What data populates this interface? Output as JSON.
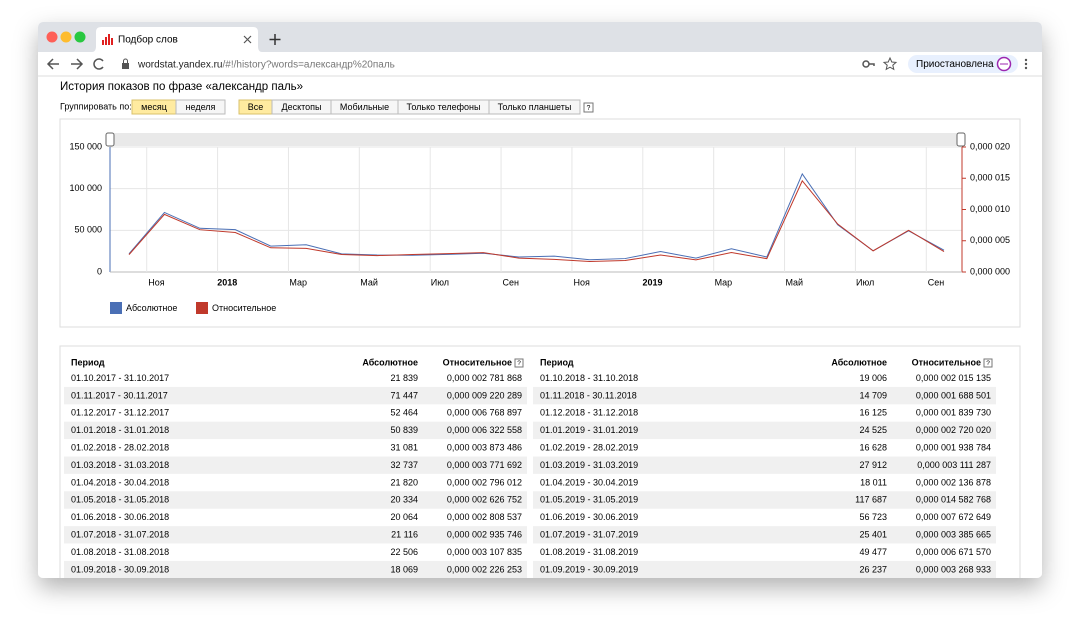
{
  "browser": {
    "tab_title": "Подбор слов",
    "url_host": "wordstat.yandex.ru",
    "url_path": "/#!/history?words=александр%20паль",
    "profile_button": "Приостановлена"
  },
  "page": {
    "title": "История показов по фразе «александр паль»",
    "group_by_label": "Группировать по:",
    "group_by_options": [
      "месяц",
      "неделя"
    ],
    "device_options": [
      "Все",
      "Десктопы",
      "Мобильные",
      "Только телефоны",
      "Только планшеты"
    ],
    "help": "?"
  },
  "chart_data": {
    "type": "line",
    "categories": [
      null,
      "Ноя",
      null,
      "2018",
      null,
      "Мар",
      null,
      "Май",
      null,
      "Июл",
      null,
      "Сен",
      null,
      "Ноя",
      null,
      "2019",
      null,
      "Мар",
      null,
      "Май",
      null,
      "Июл",
      null,
      "Сен"
    ],
    "series": [
      {
        "name": "Абсолютное",
        "color": "#4a6fb5",
        "values": [
          21839,
          71447,
          52464,
          50839,
          31081,
          32737,
          21820,
          20334,
          20064,
          21116,
          22506,
          18069,
          19006,
          14709,
          16125,
          24525,
          16628,
          27912,
          18011,
          117687,
          56723,
          25401,
          49477,
          26237
        ]
      },
      {
        "name": "Относительное",
        "color": "#c0392b",
        "axis": "y2",
        "values": [
          2.781868e-06,
          9.220289e-06,
          6.768897e-06,
          6.322558e-06,
          3.873486e-06,
          3.771692e-06,
          2.796012e-06,
          2.626752e-06,
          2.808537e-06,
          2.935746e-06,
          3.107835e-06,
          2.226253e-06,
          2.015135e-06,
          1.688501e-06,
          1.83973e-06,
          2.72002e-06,
          1.938784e-06,
          3.111287e-06,
          2.136878e-06,
          1.4582768e-05,
          7.672649e-06,
          3.385665e-06,
          6.67157e-06,
          3.268933e-06
        ]
      }
    ],
    "ylim": [
      0,
      150000
    ],
    "yticks": [
      0,
      {
        "value": 50000,
        "label": "50 000"
      },
      {
        "value": 100000,
        "label": "100 000"
      },
      {
        "value": 150000,
        "label": "150 000"
      }
    ],
    "y2lim": [
      0,
      2e-05
    ],
    "y2ticks": [
      {
        "value": 0,
        "label": "0,000 000"
      },
      {
        "value": 5e-06,
        "label": "0,000 005"
      },
      {
        "value": 1e-05,
        "label": "0,000 010"
      },
      {
        "value": 1.5e-05,
        "label": "0,000 015"
      },
      {
        "value": 2e-05,
        "label": "0,000 020"
      }
    ],
    "grid": true,
    "legend": "bottom-left"
  },
  "table": {
    "halves": [
      {
        "headers": [
          "Период",
          "Абсолютное",
          "Относительное"
        ],
        "rows": [
          [
            "01.10.2017 - 31.10.2017",
            "21 839",
            "0,000 002 781 868"
          ],
          [
            "01.11.2017 - 30.11.2017",
            "71 447",
            "0,000 009 220 289"
          ],
          [
            "01.12.2017 - 31.12.2017",
            "52 464",
            "0,000 006 768 897"
          ],
          [
            "01.01.2018 - 31.01.2018",
            "50 839",
            "0,000 006 322 558"
          ],
          [
            "01.02.2018 - 28.02.2018",
            "31 081",
            "0,000 003 873 486"
          ],
          [
            "01.03.2018 - 31.03.2018",
            "32 737",
            "0,000 003 771 692"
          ],
          [
            "01.04.2018 - 30.04.2018",
            "21 820",
            "0,000 002 796 012"
          ],
          [
            "01.05.2018 - 31.05.2018",
            "20 334",
            "0,000 002 626 752"
          ],
          [
            "01.06.2018 - 30.06.2018",
            "20 064",
            "0,000 002 808 537"
          ],
          [
            "01.07.2018 - 31.07.2018",
            "21 116",
            "0,000 002 935 746"
          ],
          [
            "01.08.2018 - 31.08.2018",
            "22 506",
            "0,000 003 107 835"
          ],
          [
            "01.09.2018 - 30.09.2018",
            "18 069",
            "0,000 002 226 253"
          ]
        ]
      },
      {
        "headers": [
          "Период",
          "Абсолютное",
          "Относительное"
        ],
        "rows": [
          [
            "01.10.2018 - 31.10.2018",
            "19 006",
            "0,000 002 015 135"
          ],
          [
            "01.11.2018 - 30.11.2018",
            "14 709",
            "0,000 001 688 501"
          ],
          [
            "01.12.2018 - 31.12.2018",
            "16 125",
            "0,000 001 839 730"
          ],
          [
            "01.01.2019 - 31.01.2019",
            "24 525",
            "0,000 002 720 020"
          ],
          [
            "01.02.2019 - 28.02.2019",
            "16 628",
            "0,000 001 938 784"
          ],
          [
            "01.03.2019 - 31.03.2019",
            "27 912",
            "0,000 003 111 287"
          ],
          [
            "01.04.2019 - 30.04.2019",
            "18 011",
            "0,000 002 136 878"
          ],
          [
            "01.05.2019 - 31.05.2019",
            "117 687",
            "0,000 014 582 768"
          ],
          [
            "01.06.2019 - 30.06.2019",
            "56 723",
            "0,000 007 672 649"
          ],
          [
            "01.07.2019 - 31.07.2019",
            "25 401",
            "0,000 003 385 665"
          ],
          [
            "01.08.2019 - 31.08.2019",
            "49 477",
            "0,000 006 671 570"
          ],
          [
            "01.09.2019 - 30.09.2019",
            "26 237",
            "0,000 003 268 933"
          ]
        ]
      }
    ]
  }
}
